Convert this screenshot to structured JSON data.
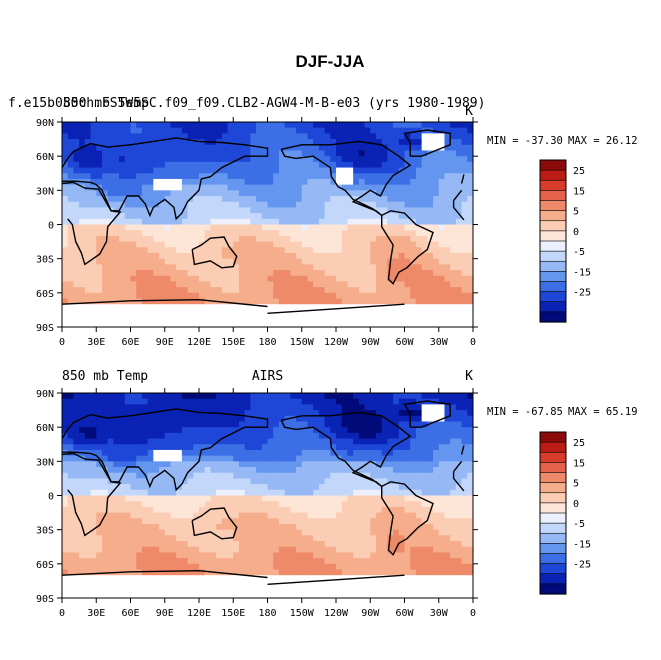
{
  "title": "DJF-JJA",
  "colorbar_levels": [
    "25",
    "15",
    "5",
    "0",
    "-5",
    "-15",
    "-25"
  ],
  "colors": {
    "palette": [
      "#000a78",
      "#0a23b4",
      "#1e46d7",
      "#3c6ee6",
      "#6496f0",
      "#96b9f5",
      "#c3d7fa",
      "#ebf0fc",
      "#fde6d7",
      "#fbcdb4",
      "#f5ad8c",
      "#ee8a69",
      "#e5634b",
      "#d83b2a",
      "#bb1c16",
      "#8c0a0a"
    ],
    "land": "#000000",
    "missing": "#ffffff"
  },
  "chart_data": [
    {
      "type": "heatmap",
      "left_title": "f.e15b050ch.FS5W5SC.f09_f09.CLB2-AGW4-M-B-e03 (yrs 1980-1989)",
      "overlay_left_title": "850 mb Temp",
      "center_title": "",
      "units": "K",
      "min_label": "MIN = -37.30",
      "max_label": "MAX = 26.12",
      "min": -37.3,
      "max": 26.12,
      "xlim": [
        0,
        360
      ],
      "ylim": [
        -90,
        90
      ],
      "x_ticks": [
        "0",
        "30E",
        "60E",
        "90E",
        "120E",
        "150E",
        "180",
        "150W",
        "120W",
        "90W",
        "60W",
        "30W",
        "0"
      ],
      "y_ticks": [
        "90N",
        "60N",
        "30N",
        "0",
        "30S",
        "60S",
        "90S"
      ],
      "missing_regions": [
        "Tibetan Plateau",
        "Rocky Mountains",
        "Greenland",
        "Antarctica"
      ]
    },
    {
      "type": "heatmap",
      "left_title": "850 mb Temp",
      "center_title": "AIRS",
      "units": "K",
      "min_label": "MIN = -67.85",
      "max_label": "MAX = 65.19",
      "min": -67.85,
      "max": 65.19,
      "xlim": [
        0,
        360
      ],
      "ylim": [
        -90,
        90
      ],
      "x_ticks": [
        "0",
        "30E",
        "60E",
        "90E",
        "120E",
        "150E",
        "180",
        "150W",
        "120W",
        "90W",
        "60W",
        "30W",
        "0"
      ],
      "y_ticks": [
        "90N",
        "60N",
        "30N",
        "0",
        "30S",
        "60S",
        "90S"
      ],
      "missing_regions": [
        "Tibetan Plateau",
        "Greenland",
        "Antarctica"
      ]
    }
  ]
}
